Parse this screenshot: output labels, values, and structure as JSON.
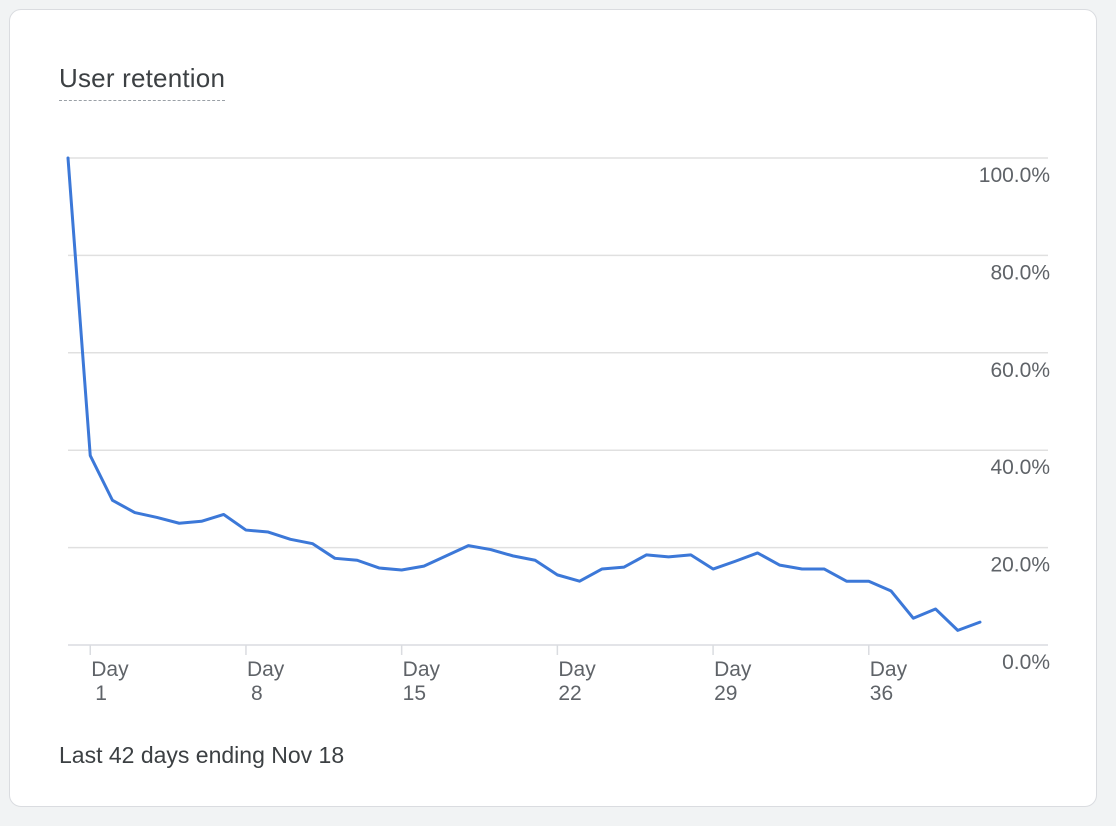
{
  "card": {
    "title": "User retention",
    "footnote": "Last 42 days ending Nov 18"
  },
  "colors": {
    "line": "#3c78d8",
    "grid": "#e0e0e0",
    "axis": "#dadce0"
  },
  "chart_data": {
    "type": "line",
    "title": "User retention",
    "xlabel": "",
    "ylabel": "",
    "x": [
      0,
      1,
      2,
      3,
      4,
      5,
      6,
      7,
      8,
      9,
      10,
      11,
      12,
      13,
      14,
      15,
      16,
      17,
      18,
      19,
      20,
      21,
      22,
      23,
      24,
      25,
      26,
      27,
      28,
      29,
      30,
      31,
      32,
      33,
      34,
      35,
      36,
      37,
      38,
      39,
      40,
      41
    ],
    "series": [
      {
        "values": [
          100.0,
          38.9,
          29.7,
          27.2,
          26.2,
          25.0,
          25.4,
          26.8,
          23.6,
          23.2,
          21.7,
          20.8,
          17.8,
          17.4,
          15.8,
          15.4,
          16.2,
          18.3,
          20.4,
          19.6,
          18.3,
          17.4,
          14.4,
          13.1,
          15.6,
          16.0,
          18.5,
          18.1,
          18.5,
          15.6,
          17.2,
          18.9,
          16.4,
          15.6,
          15.6,
          13.1,
          13.1,
          11.1,
          5.5,
          7.4,
          3.0,
          4.7
        ]
      }
    ],
    "xticks": [
      {
        "x": 1,
        "line1": "Day",
        "line2": "1"
      },
      {
        "x": 8,
        "line1": "Day",
        "line2": "8"
      },
      {
        "x": 15,
        "line1": "Day",
        "line2": "15"
      },
      {
        "x": 22,
        "line1": "Day",
        "line2": "22"
      },
      {
        "x": 29,
        "line1": "Day",
        "line2": "29"
      },
      {
        "x": 36,
        "line1": "Day",
        "line2": "36"
      }
    ],
    "yticks": [
      {
        "value": 100,
        "label": "100.0%"
      },
      {
        "value": 80,
        "label": "80.0%"
      },
      {
        "value": 60,
        "label": "60.0%"
      },
      {
        "value": 40,
        "label": "40.0%"
      },
      {
        "value": 20,
        "label": "20.0%"
      },
      {
        "value": 0,
        "label": "0.0%"
      }
    ],
    "ylim": [
      0,
      100
    ],
    "xlim": [
      0,
      41
    ],
    "grid": true,
    "yaxis_side": "right"
  }
}
